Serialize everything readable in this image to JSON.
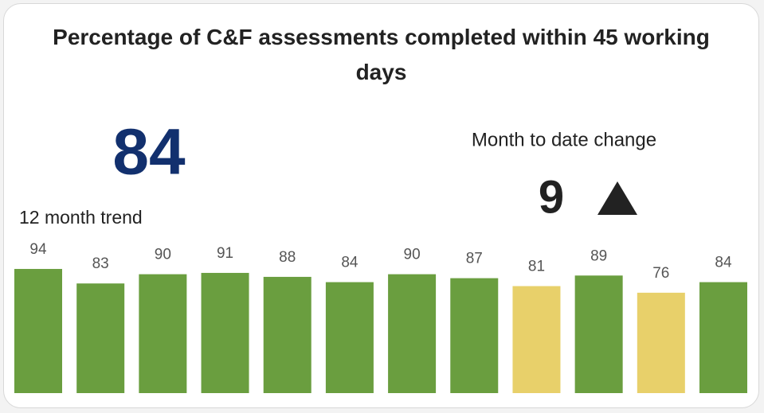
{
  "title": "Percentage of C&F assessments completed within 45 working days",
  "kpi": {
    "value": 84
  },
  "change": {
    "label": "Month to date change",
    "value": 9
  },
  "chart_data": {
    "type": "bar",
    "title": "12 month trend",
    "values": [
      94,
      83,
      90,
      91,
      88,
      84,
      90,
      87,
      81,
      89,
      76,
      84
    ],
    "colors": [
      "#6a9e3f",
      "#6a9e3f",
      "#6a9e3f",
      "#6a9e3f",
      "#6a9e3f",
      "#6a9e3f",
      "#6a9e3f",
      "#6a9e3f",
      "#e8d06a",
      "#6a9e3f",
      "#e8d06a",
      "#6a9e3f"
    ]
  }
}
